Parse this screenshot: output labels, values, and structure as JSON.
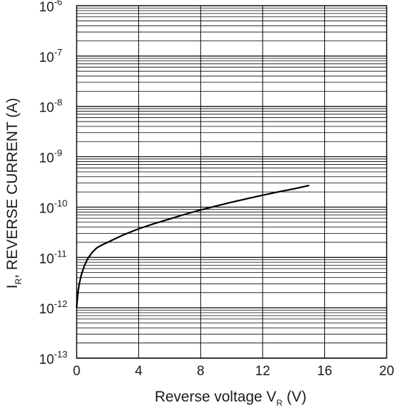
{
  "chart_data": {
    "type": "line",
    "xlabel": {
      "pre": "Reverse voltage V",
      "sub": "R",
      "post": " (V)"
    },
    "ylabel": {
      "pre": "I",
      "sub": "R",
      "post": ", REVERSE CURRENT (A)"
    },
    "x_ticks": [
      "0",
      "4",
      "8",
      "12",
      "16",
      "20"
    ],
    "y_ticks": [
      {
        "base": "10",
        "exp": "-13"
      },
      {
        "base": "10",
        "exp": "-12"
      },
      {
        "base": "10",
        "exp": "-11"
      },
      {
        "base": "10",
        "exp": "-10"
      },
      {
        "base": "10",
        "exp": "-9"
      },
      {
        "base": "10",
        "exp": "-8"
      },
      {
        "base": "10",
        "exp": "-7"
      },
      {
        "base": "10",
        "exp": "-6"
      }
    ],
    "xlim": [
      0,
      20
    ],
    "ylim": [
      1e-13,
      1e-06
    ],
    "y_scale": "log",
    "grid": true,
    "series": [
      {
        "color": "#000000",
        "x": [
          0.0,
          0.05,
          0.1,
          0.2,
          0.3,
          0.5,
          0.7,
          1.0,
          1.3,
          1.6,
          2.0,
          3.0,
          4.0,
          5.0,
          6.0,
          7.0,
          8.0,
          9.0,
          10.0,
          11.0,
          12.0,
          13.0,
          14.0,
          15.0
        ],
        "y": [
          1e-12,
          1.5e-12,
          2.2e-12,
          3.3e-12,
          4.5e-12,
          6.8e-12,
          9.3e-12,
          1.25e-11,
          1.55e-11,
          1.75e-11,
          2e-11,
          2.8e-11,
          3.7e-11,
          4.7e-11,
          5.8e-11,
          7.2e-11,
          8.8e-11,
          1.05e-10,
          1.25e-10,
          1.47e-10,
          1.72e-10,
          2e-10,
          2.3e-10,
          2.7e-10
        ]
      }
    ]
  }
}
